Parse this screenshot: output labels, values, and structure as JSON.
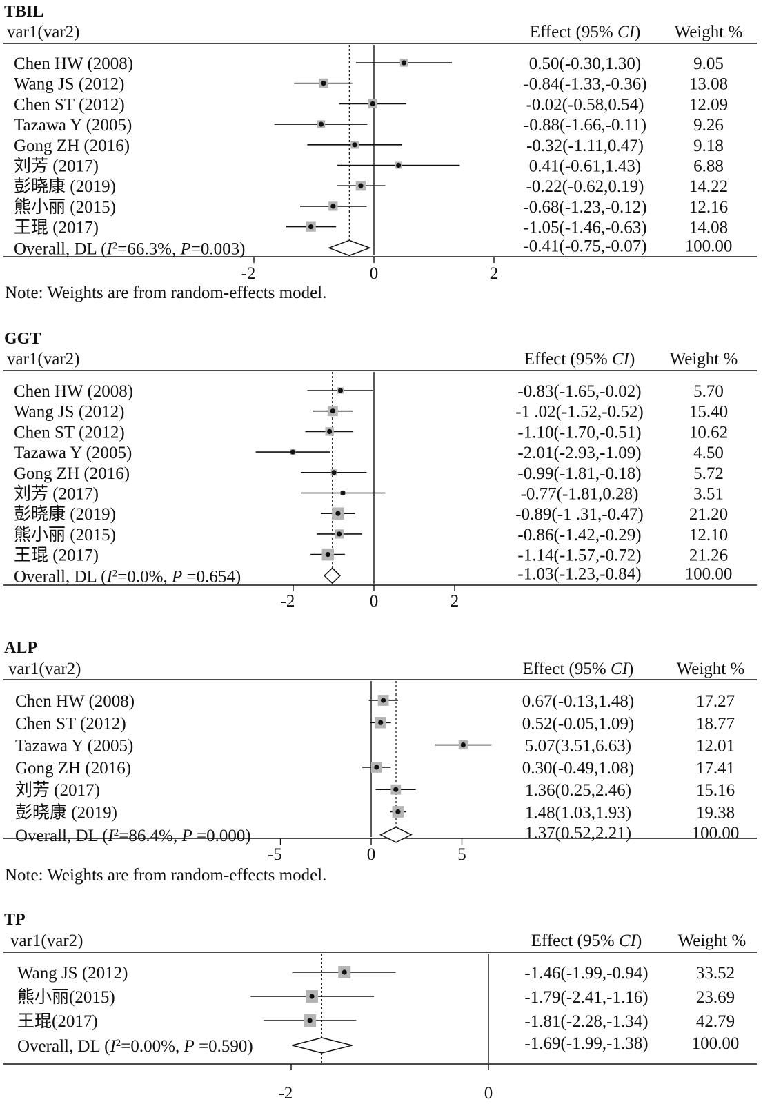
{
  "chart_data": [
    {
      "type": "forest",
      "title": "TBIL",
      "header": {
        "study": "var1(var2)",
        "effect_prefix": "Effect (95% ",
        "effect_italic": "CI",
        "effect_suffix": ")",
        "weight": "Weight %"
      },
      "axis": {
        "ticks": [
          -2,
          0,
          2
        ],
        "xlim": [
          -3.2,
          2.2
        ]
      },
      "studies": [
        {
          "label": "Chen HW (2008)",
          "est": 0.5,
          "lo": -0.3,
          "hi": 1.3,
          "effect": "0.50(-0.30,1.30)",
          "weight": "9.05"
        },
        {
          "label": "Wang JS (2012)",
          "est": -0.84,
          "lo": -1.33,
          "hi": -0.36,
          "effect": "-0.84(-1.33,-0.36)",
          "weight": "13.08"
        },
        {
          "label": "Chen ST (2012)",
          "est": -0.02,
          "lo": -0.58,
          "hi": 0.54,
          "effect": "-0.02(-0.58,0.54)",
          "weight": "12.09"
        },
        {
          "label": "Tazawa Y (2005)",
          "est": -0.88,
          "lo": -1.66,
          "hi": -0.11,
          "effect": "-0.88(-1.66,-0.11)",
          "weight": "9.26"
        },
        {
          "label": "Gong ZH (2016)",
          "est": -0.32,
          "lo": -1.11,
          "hi": 0.47,
          "effect": "-0.32(-1.11,0.47)",
          "weight": "9.18"
        },
        {
          "label": "刘芳 (2017)",
          "est": 0.41,
          "lo": -0.61,
          "hi": 1.43,
          "effect": "0.41(-0.61,1.43)",
          "weight": "6.88"
        },
        {
          "label": "彭晓康 (2019)",
          "est": -0.22,
          "lo": -0.62,
          "hi": 0.19,
          "effect": "-0.22(-0.62,0.19)",
          "weight": "14.22"
        },
        {
          "label": "熊小丽 (2015)",
          "est": -0.68,
          "lo": -1.23,
          "hi": -0.12,
          "effect": "-0.68(-1.23,-0.12)",
          "weight": "12.16"
        },
        {
          "label": "王琨 (2017)",
          "est": -1.05,
          "lo": -1.46,
          "hi": -0.63,
          "effect": "-1.05(-1.46,-0.63)",
          "weight": "14.08"
        }
      ],
      "overall": {
        "prefix": "Overall, DL (",
        "i2_value": "=66.3%, ",
        "p_value": "=0.003)",
        "est": -0.41,
        "lo": -0.75,
        "hi": -0.07,
        "effect": "-0.41(-0.75,-0.07)",
        "weight": "100.00"
      },
      "note": "Note: Weights are from random-effects model."
    },
    {
      "type": "forest",
      "title": "GGT",
      "header": {
        "study": "var1(var2)",
        "effect_prefix": "Effect (95% ",
        "effect_italic": "CI",
        "effect_suffix": ")",
        "weight": "Weight %"
      },
      "axis": {
        "ticks": [
          -2,
          0,
          2
        ],
        "xlim": [
          -3.0,
          2.5
        ]
      },
      "studies": [
        {
          "label": "Chen HW (2008)",
          "est": -0.83,
          "lo": -1.65,
          "hi": -0.02,
          "effect": "-0.83(-1.65,-0.02)",
          "weight": "5.70"
        },
        {
          "label": "Wang JS (2012)",
          "est": -1.02,
          "lo": -1.52,
          "hi": -0.52,
          "effect": "-1 .02(-1.52,-0.52)",
          "weight": "15.40"
        },
        {
          "label": "Chen ST (2012)",
          "est": -1.1,
          "lo": -1.7,
          "hi": -0.51,
          "effect": "-1.10(-1.70,-0.51)",
          "weight": "10.62"
        },
        {
          "label": "Tazawa Y (2005)",
          "est": -2.01,
          "lo": -2.93,
          "hi": -1.09,
          "effect": "-2.01(-2.93,-1.09)",
          "weight": "4.50"
        },
        {
          "label": "Gong ZH (2016)",
          "est": -0.99,
          "lo": -1.81,
          "hi": -0.18,
          "effect": "-0.99(-1.81,-0.18)",
          "weight": "5.72"
        },
        {
          "label": "刘芳 (2017)",
          "est": -0.77,
          "lo": -1.81,
          "hi": 0.28,
          "effect": "-0.77(-1.81,0.28)",
          "weight": "3.51"
        },
        {
          "label": "彭晓康 (2019)",
          "est": -0.89,
          "lo": -1.31,
          "hi": -0.47,
          "effect": "-0.89(-1 .31,-0.47)",
          "weight": "21.20"
        },
        {
          "label": "熊小丽 (2015)",
          "est": -0.86,
          "lo": -1.42,
          "hi": -0.29,
          "effect": "-0.86(-1.42,-0.29)",
          "weight": "12.10"
        },
        {
          "label": "王琨 (2017)",
          "est": -1.14,
          "lo": -1.57,
          "hi": -0.72,
          "effect": "-1.14(-1.57,-0.72)",
          "weight": "21.26"
        }
      ],
      "overall": {
        "prefix": "Overall, DL (",
        "i2_value": "=0.0%, ",
        "p_value": " =0.654)",
        "est": -1.03,
        "lo": -1.23,
        "hi": -0.84,
        "effect": "-1.03(-1.23,-0.84)",
        "weight": "100.00"
      },
      "note": ""
    },
    {
      "type": "forest",
      "title": "ALP",
      "header": {
        "study": "var1(var2)",
        "effect_prefix": "Effect (95% ",
        "effect_italic": "CI",
        "effect_suffix": ")",
        "weight": "Weight %"
      },
      "axis": {
        "ticks": [
          -5,
          0,
          5
        ],
        "xlim": [
          -7,
          8
        ]
      },
      "studies": [
        {
          "label": "Chen HW (2008)",
          "est": 0.67,
          "lo": -0.13,
          "hi": 1.48,
          "effect": "0.67(-0.13,1.48)",
          "weight": "17.27"
        },
        {
          "label": "Chen ST (2012)",
          "est": 0.52,
          "lo": -0.05,
          "hi": 1.09,
          "effect": "0.52(-0.05,1.09)",
          "weight": "18.77"
        },
        {
          "label": "Tazawa Y (2005)",
          "est": 5.07,
          "lo": 3.51,
          "hi": 6.63,
          "effect": "5.07(3.51,6.63)",
          "weight": "12.01"
        },
        {
          "label": "Gong ZH (2016)",
          "est": 0.3,
          "lo": -0.49,
          "hi": 1.08,
          "effect": "0.30(-0.49,1.08)",
          "weight": "17.41"
        },
        {
          "label": "刘芳 (2017)",
          "est": 1.36,
          "lo": 0.25,
          "hi": 2.46,
          "effect": "1.36(0.25,2.46)",
          "weight": "15.16"
        },
        {
          "label": "彭晓康 (2019)",
          "est": 1.48,
          "lo": 1.03,
          "hi": 1.93,
          "effect": "1.48(1.03,1.93)",
          "weight": "19.38"
        }
      ],
      "overall": {
        "prefix": "Overall, DL (",
        "i2_value": "=86.4%, ",
        "p_value": " =0.000)",
        "est": 1.37,
        "lo": 0.52,
        "hi": 2.21,
        "effect": "1.37(0.52,2.21)",
        "weight": "100.00"
      },
      "note": "Note: Weights are from random-effects model."
    },
    {
      "type": "forest",
      "title": "TP",
      "header": {
        "study": "var1(var2)",
        "effect_prefix": "Effect (95% ",
        "effect_italic": "CI",
        "effect_suffix": ")",
        "weight": "Weight %"
      },
      "axis": {
        "ticks": [
          -2,
          0
        ],
        "xlim": [
          -3.0,
          0.0
        ]
      },
      "studies": [
        {
          "label": "Wang JS (2012)",
          "est": -1.46,
          "lo": -1.99,
          "hi": -0.94,
          "effect": "-1.46(-1.99,-0.94)",
          "weight": "33.52"
        },
        {
          "label": "熊小丽(2015)",
          "est": -1.79,
          "lo": -2.41,
          "hi": -1.16,
          "effect": "-1.79(-2.41,-1.16)",
          "weight": "23.69"
        },
        {
          "label": "王琨(2017)",
          "est": -1.81,
          "lo": -2.28,
          "hi": -1.34,
          "effect": "-1.81(-2.28,-1.34)",
          "weight": "42.79"
        }
      ],
      "overall": {
        "prefix": "Overall, DL (",
        "i2_value": "=0.00%, ",
        "p_value": " =0.590)",
        "est": -1.69,
        "lo": -1.99,
        "hi": -1.38,
        "effect": "-1.69(-1.99,-1.38)",
        "weight": "100.00"
      },
      "note": ""
    }
  ]
}
